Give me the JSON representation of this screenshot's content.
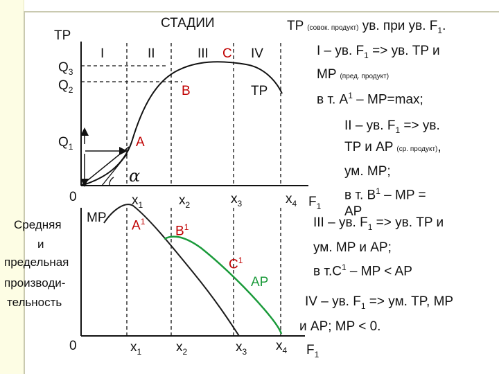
{
  "top_panel": {
    "title": "СТАДИИ",
    "y_axis_label": "TP",
    "y_marks": {
      "q3": "Q",
      "q3_sub": "3",
      "q2": "Q",
      "q2_sub": "2",
      "q1": "Q",
      "q1_sub": "1"
    },
    "origin": "0",
    "stages": [
      "I",
      "II",
      "III",
      "IV"
    ],
    "point_labels": {
      "a": "A",
      "b": "B",
      "c": "C"
    },
    "curve_label": "TP",
    "angle_symbol": "α",
    "x_ticks": [
      {
        "base": "x",
        "sub": "1"
      },
      {
        "base": "x",
        "sub": "2"
      },
      {
        "base": "x",
        "sub": "3"
      },
      {
        "base": "x",
        "sub": "4"
      }
    ],
    "x_axis_label": {
      "base": "F",
      "sub": "1"
    }
  },
  "bottom_panel": {
    "y_axis_label_lines": [
      "Средняя",
      "и",
      "предельная",
      "производи-",
      "тельность"
    ],
    "origin": "0",
    "mp_label": "MP",
    "ap_label": "AP",
    "point_labels": {
      "a1": "A",
      "b1": "B",
      "c1": "C",
      "sup": "1"
    },
    "x_ticks": [
      {
        "base": "x",
        "sub": "1"
      },
      {
        "base": "x",
        "sub": "2"
      },
      {
        "base": "x",
        "sub": "3"
      },
      {
        "base": "x",
        "sub": "4"
      }
    ],
    "x_axis_label": {
      "base": "F",
      "sub": "1"
    }
  },
  "notes": {
    "header": {
      "a": "TP",
      "small": "(совок. продукт)",
      "b": "ув. при ув. F",
      "sub": "1",
      "end": "."
    },
    "s1_l1": {
      "a": "I – ув. F",
      "sub": "1",
      "b": " => ув. TP и"
    },
    "s1_l2": {
      "a": "MP",
      "small": "(пред. продукт)"
    },
    "s1_l3": {
      "a": "в т. A",
      "sup": "1",
      "b": " – MP=max;"
    },
    "s2_l1": {
      "a": "II – ув. F",
      "sub": "1",
      "b": " => ув."
    },
    "s2_l2": {
      "a": "TP и AP",
      "small": "(ср. продукт)",
      "b": ","
    },
    "s2_l3": "ум. MP;",
    "s2_l4": {
      "a": "в т. B",
      "sup": "1",
      "b": " – MP ="
    },
    "s2_l5": "AP",
    "s3_l1": {
      "a": "III – ув. F",
      "sub": "1",
      "b": " => ув. TP и"
    },
    "s3_l2": "ум. MP и AP;",
    "s3_l3": {
      "a": "в т.C",
      "sup": "1",
      "b": " – MP < AP"
    },
    "s4_l1": {
      "a": "IV – ув. F",
      "sub": "1",
      "b": " => ум. TP, MP"
    },
    "s4_l2": "и AP; MP < 0."
  },
  "colors": {
    "mp_curve": "#1a1a1a",
    "ap_curve": "#1a9a3a",
    "axes": "#111111",
    "left_bar": "#fdfde4"
  }
}
